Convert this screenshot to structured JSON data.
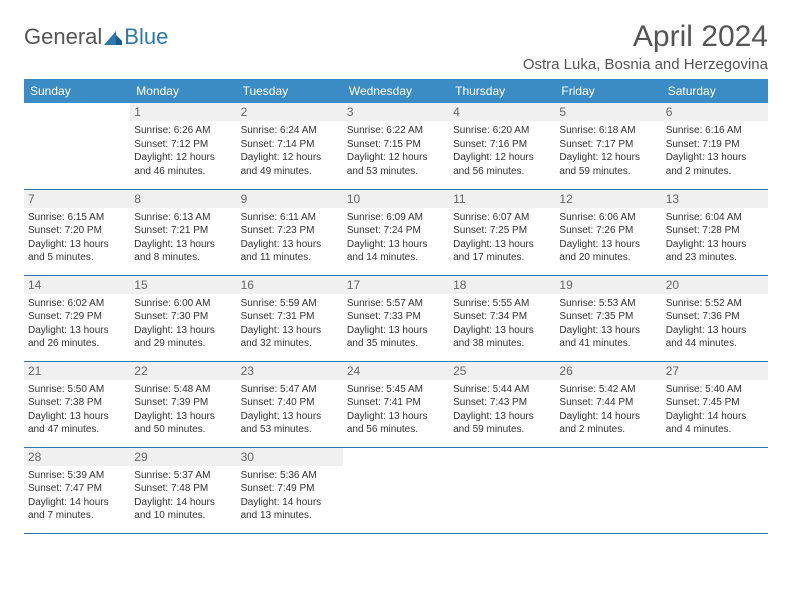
{
  "logo": {
    "general": "General",
    "blue": "Blue"
  },
  "title": "April 2024",
  "location": "Ostra Luka, Bosnia and Herzegovina",
  "dayHeaders": [
    "Sunday",
    "Monday",
    "Tuesday",
    "Wednesday",
    "Thursday",
    "Friday",
    "Saturday"
  ],
  "colors": {
    "headerBg": "#3b8bc4",
    "borderRow": "#2a7ab0",
    "dayBg": "#f0f0f0",
    "text": "#333333",
    "titleText": "#555555"
  },
  "weeks": [
    [
      {
        "n": "",
        "sr": "",
        "ss": "",
        "dl": ""
      },
      {
        "n": "1",
        "sr": "Sunrise: 6:26 AM",
        "ss": "Sunset: 7:12 PM",
        "dl": "Daylight: 12 hours and 46 minutes."
      },
      {
        "n": "2",
        "sr": "Sunrise: 6:24 AM",
        "ss": "Sunset: 7:14 PM",
        "dl": "Daylight: 12 hours and 49 minutes."
      },
      {
        "n": "3",
        "sr": "Sunrise: 6:22 AM",
        "ss": "Sunset: 7:15 PM",
        "dl": "Daylight: 12 hours and 53 minutes."
      },
      {
        "n": "4",
        "sr": "Sunrise: 6:20 AM",
        "ss": "Sunset: 7:16 PM",
        "dl": "Daylight: 12 hours and 56 minutes."
      },
      {
        "n": "5",
        "sr": "Sunrise: 6:18 AM",
        "ss": "Sunset: 7:17 PM",
        "dl": "Daylight: 12 hours and 59 minutes."
      },
      {
        "n": "6",
        "sr": "Sunrise: 6:16 AM",
        "ss": "Sunset: 7:19 PM",
        "dl": "Daylight: 13 hours and 2 minutes."
      }
    ],
    [
      {
        "n": "7",
        "sr": "Sunrise: 6:15 AM",
        "ss": "Sunset: 7:20 PM",
        "dl": "Daylight: 13 hours and 5 minutes."
      },
      {
        "n": "8",
        "sr": "Sunrise: 6:13 AM",
        "ss": "Sunset: 7:21 PM",
        "dl": "Daylight: 13 hours and 8 minutes."
      },
      {
        "n": "9",
        "sr": "Sunrise: 6:11 AM",
        "ss": "Sunset: 7:23 PM",
        "dl": "Daylight: 13 hours and 11 minutes."
      },
      {
        "n": "10",
        "sr": "Sunrise: 6:09 AM",
        "ss": "Sunset: 7:24 PM",
        "dl": "Daylight: 13 hours and 14 minutes."
      },
      {
        "n": "11",
        "sr": "Sunrise: 6:07 AM",
        "ss": "Sunset: 7:25 PM",
        "dl": "Daylight: 13 hours and 17 minutes."
      },
      {
        "n": "12",
        "sr": "Sunrise: 6:06 AM",
        "ss": "Sunset: 7:26 PM",
        "dl": "Daylight: 13 hours and 20 minutes."
      },
      {
        "n": "13",
        "sr": "Sunrise: 6:04 AM",
        "ss": "Sunset: 7:28 PM",
        "dl": "Daylight: 13 hours and 23 minutes."
      }
    ],
    [
      {
        "n": "14",
        "sr": "Sunrise: 6:02 AM",
        "ss": "Sunset: 7:29 PM",
        "dl": "Daylight: 13 hours and 26 minutes."
      },
      {
        "n": "15",
        "sr": "Sunrise: 6:00 AM",
        "ss": "Sunset: 7:30 PM",
        "dl": "Daylight: 13 hours and 29 minutes."
      },
      {
        "n": "16",
        "sr": "Sunrise: 5:59 AM",
        "ss": "Sunset: 7:31 PM",
        "dl": "Daylight: 13 hours and 32 minutes."
      },
      {
        "n": "17",
        "sr": "Sunrise: 5:57 AM",
        "ss": "Sunset: 7:33 PM",
        "dl": "Daylight: 13 hours and 35 minutes."
      },
      {
        "n": "18",
        "sr": "Sunrise: 5:55 AM",
        "ss": "Sunset: 7:34 PM",
        "dl": "Daylight: 13 hours and 38 minutes."
      },
      {
        "n": "19",
        "sr": "Sunrise: 5:53 AM",
        "ss": "Sunset: 7:35 PM",
        "dl": "Daylight: 13 hours and 41 minutes."
      },
      {
        "n": "20",
        "sr": "Sunrise: 5:52 AM",
        "ss": "Sunset: 7:36 PM",
        "dl": "Daylight: 13 hours and 44 minutes."
      }
    ],
    [
      {
        "n": "21",
        "sr": "Sunrise: 5:50 AM",
        "ss": "Sunset: 7:38 PM",
        "dl": "Daylight: 13 hours and 47 minutes."
      },
      {
        "n": "22",
        "sr": "Sunrise: 5:48 AM",
        "ss": "Sunset: 7:39 PM",
        "dl": "Daylight: 13 hours and 50 minutes."
      },
      {
        "n": "23",
        "sr": "Sunrise: 5:47 AM",
        "ss": "Sunset: 7:40 PM",
        "dl": "Daylight: 13 hours and 53 minutes."
      },
      {
        "n": "24",
        "sr": "Sunrise: 5:45 AM",
        "ss": "Sunset: 7:41 PM",
        "dl": "Daylight: 13 hours and 56 minutes."
      },
      {
        "n": "25",
        "sr": "Sunrise: 5:44 AM",
        "ss": "Sunset: 7:43 PM",
        "dl": "Daylight: 13 hours and 59 minutes."
      },
      {
        "n": "26",
        "sr": "Sunrise: 5:42 AM",
        "ss": "Sunset: 7:44 PM",
        "dl": "Daylight: 14 hours and 2 minutes."
      },
      {
        "n": "27",
        "sr": "Sunrise: 5:40 AM",
        "ss": "Sunset: 7:45 PM",
        "dl": "Daylight: 14 hours and 4 minutes."
      }
    ],
    [
      {
        "n": "28",
        "sr": "Sunrise: 5:39 AM",
        "ss": "Sunset: 7:47 PM",
        "dl": "Daylight: 14 hours and 7 minutes."
      },
      {
        "n": "29",
        "sr": "Sunrise: 5:37 AM",
        "ss": "Sunset: 7:48 PM",
        "dl": "Daylight: 14 hours and 10 minutes."
      },
      {
        "n": "30",
        "sr": "Sunrise: 5:36 AM",
        "ss": "Sunset: 7:49 PM",
        "dl": "Daylight: 14 hours and 13 minutes."
      },
      {
        "n": "",
        "sr": "",
        "ss": "",
        "dl": ""
      },
      {
        "n": "",
        "sr": "",
        "ss": "",
        "dl": ""
      },
      {
        "n": "",
        "sr": "",
        "ss": "",
        "dl": ""
      },
      {
        "n": "",
        "sr": "",
        "ss": "",
        "dl": ""
      }
    ]
  ]
}
